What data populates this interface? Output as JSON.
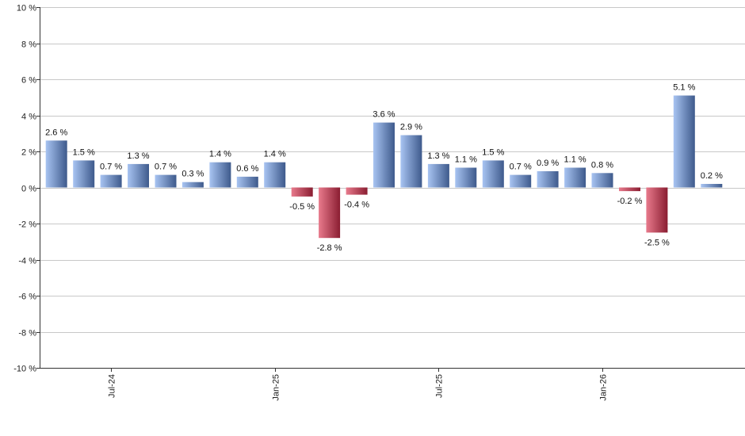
{
  "chart_data": {
    "type": "bar",
    "values": [
      2.6,
      1.5,
      0.7,
      1.3,
      0.7,
      0.3,
      1.4,
      0.6,
      1.4,
      -0.5,
      -2.8,
      -0.4,
      3.6,
      2.9,
      1.3,
      1.1,
      1.5,
      0.7,
      0.9,
      1.1,
      0.8,
      -0.2,
      -2.5,
      5.1,
      0.2
    ],
    "value_labels": [
      "2.6 %",
      "1.5 %",
      "0.7 %",
      "1.3 %",
      "0.7 %",
      "0.3 %",
      "1.4 %",
      "0.6 %",
      "1.4 %",
      "-0.5 %",
      "-2.8 %",
      "-0.4 %",
      "3.6 %",
      "2.9 %",
      "1.3 %",
      "1.1 %",
      "1.5 %",
      "0.7 %",
      "0.9 %",
      "1.1 %",
      "0.8 %",
      "-0.2 %",
      "-2.5 %",
      "5.1 %",
      "0.2 %"
    ],
    "x_tick_labels": [
      {
        "bar_index": 2,
        "label": "Jul-24"
      },
      {
        "bar_index": 8,
        "label": "Jan-25"
      },
      {
        "bar_index": 14,
        "label": "Jul-25"
      },
      {
        "bar_index": 20,
        "label": "Jan-26"
      }
    ],
    "y_ticks": [
      {
        "value": 10,
        "label": "10 %"
      },
      {
        "value": 8,
        "label": "8 %"
      },
      {
        "value": 6,
        "label": "6 %"
      },
      {
        "value": 4,
        "label": "4 %"
      },
      {
        "value": 2,
        "label": "2 %"
      },
      {
        "value": 0,
        "label": "0 %"
      },
      {
        "value": -2,
        "label": "-2 %"
      },
      {
        "value": -4,
        "label": "-4 %"
      },
      {
        "value": -6,
        "label": "-6 %"
      },
      {
        "value": -8,
        "label": "-8 %"
      },
      {
        "value": -10,
        "label": "-10 %"
      }
    ],
    "ylim": [
      -10,
      10
    ],
    "grid": true,
    "colors": {
      "positive_light": "#a8c4f2",
      "positive_dark": "#3e5a8c",
      "negative_light": "#e87a8c",
      "negative_dark": "#8a1d31",
      "grid": "#c8c8c8",
      "axis": "#333333"
    }
  }
}
